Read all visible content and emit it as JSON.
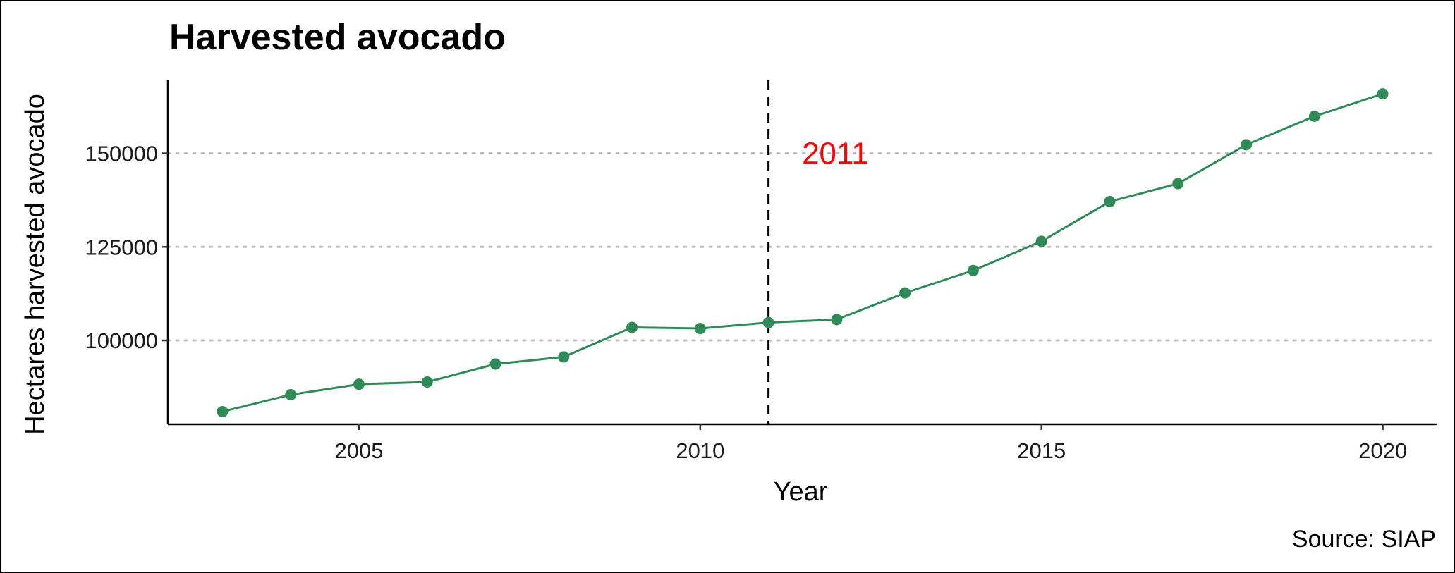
{
  "chart_data": {
    "type": "line",
    "title": "Harvested avocado",
    "xlabel": "Year",
    "ylabel": "Hectares harvested avocado",
    "caption": "Source: SIAP",
    "x": [
      2003,
      2004,
      2005,
      2006,
      2007,
      2008,
      2009,
      2010,
      2011,
      2012,
      2013,
      2014,
      2015,
      2016,
      2017,
      2018,
      2019,
      2020
    ],
    "series": [
      {
        "values": [
          81000,
          85500,
          88300,
          88900,
          93700,
          95600,
          103500,
          103200,
          104800,
          105600,
          112700,
          118700,
          126500,
          137100,
          141900,
          152300,
          159900,
          165900
        ]
      }
    ],
    "xlim": [
      2002.2,
      2020.8
    ],
    "ylim": [
      77600,
      169500
    ],
    "x_ticks": [
      2005,
      2010,
      2015,
      2020
    ],
    "y_ticks": [
      100000,
      125000,
      150000
    ],
    "y_gridlines": true,
    "x_gridlines": false,
    "line_color": "#2e8b57",
    "vline": {
      "x": 2011,
      "style": "dashed",
      "color": "#000000"
    },
    "annotation": {
      "text": "2011",
      "x": 2012,
      "y": 150000,
      "color": "#ff0000"
    }
  }
}
